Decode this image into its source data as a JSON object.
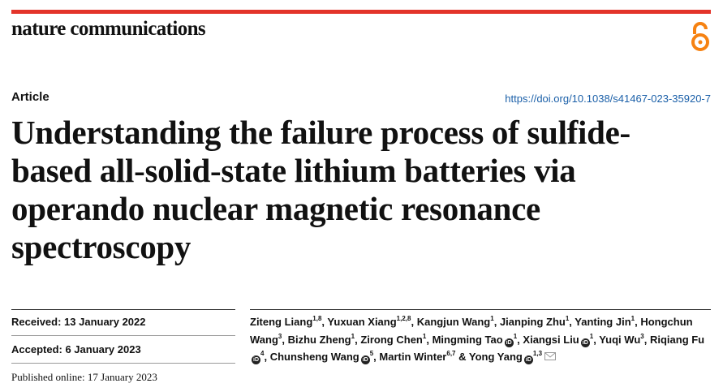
{
  "header": {
    "journal": "nature communications",
    "article_type": "Article",
    "doi": "https://doi.org/10.1038/s41467-023-35920-7"
  },
  "title_lines": [
    "Understanding the failure process of sulfide-",
    "based all-solid-state lithium batteries via",
    "operando nuclear magnetic resonance",
    "spectroscopy"
  ],
  "dates": {
    "received": "Received: 13 January 2022",
    "accepted": "Accepted: 6 January 2023",
    "published": "Published online: 17 January 2023"
  },
  "authors": [
    {
      "name": "Ziteng Liang",
      "sup": "1,8",
      "sep": ","
    },
    {
      "name": "Yuxuan Xiang",
      "sup": "1,2,8",
      "sep": ","
    },
    {
      "name": "Kangjun Wang",
      "sup": "1",
      "sep": ","
    },
    {
      "name": "Jianping Zhu",
      "sup": "1",
      "sep": ","
    },
    {
      "name": "Yanting Jin",
      "sup": "1",
      "sep": ","
    },
    {
      "name": "Hongchun Wang",
      "sup": "3",
      "sep": ","
    },
    {
      "name": "Bizhu Zheng",
      "sup": "1",
      "sep": ","
    },
    {
      "name": "Zirong Chen",
      "sup": "1",
      "sep": ","
    },
    {
      "name": "Mingming Tao",
      "sup": "1",
      "orcid": true,
      "sep": ","
    },
    {
      "name": "Xiangsi Liu",
      "sup": "1",
      "orcid": true,
      "sep": ","
    },
    {
      "name": "Yuqi Wu",
      "sup": "3",
      "sep": ","
    },
    {
      "name": "Riqiang Fu",
      "sup": "4",
      "orcid": true,
      "sep": ","
    },
    {
      "name": "Chunsheng Wang",
      "sup": "5",
      "orcid": true,
      "sep": ","
    },
    {
      "name": "Martin Winter",
      "sup": "6,7",
      "sep": "&"
    },
    {
      "name": "Yong Yang",
      "sup": "1,3",
      "orcid": true,
      "mail": true
    }
  ]
}
